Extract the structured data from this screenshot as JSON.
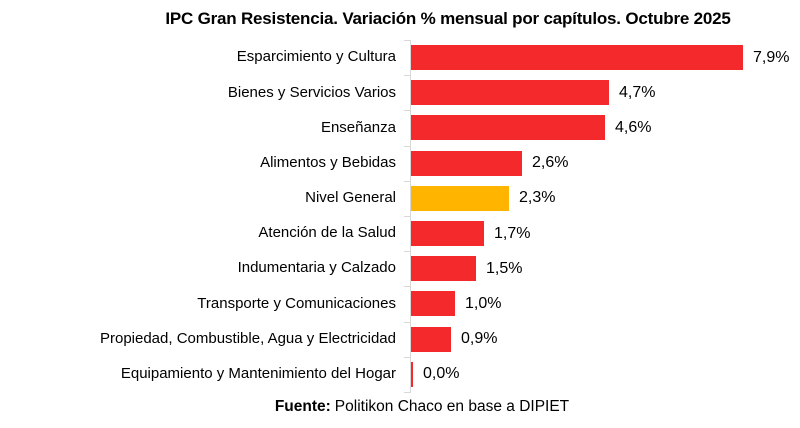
{
  "title": "IPC Gran Resistencia. Variación % mensual por capítulos. Octubre 2025",
  "footer": {
    "source_label": "Fuente:",
    "source_text": "Politikon Chaco en base a DIPIET"
  },
  "colors": {
    "bar_red": "#f4292c",
    "bar_highlight": "#ffb400",
    "axis_gray": "#d8d8d8",
    "text": "#000000",
    "background": "#ffffff"
  },
  "chart_data": {
    "type": "bar",
    "orientation": "horizontal",
    "title": "IPC Gran Resistencia. Variación % mensual por capítulos. Octubre 2025",
    "xlabel": "",
    "ylabel": "",
    "xlim": [
      0,
      8.4
    ],
    "grid": false,
    "legend": "none",
    "bar_color": "#f4292c",
    "highlight_color": "#ffb400",
    "highlight_category": "Nivel General",
    "categories": [
      "Esparcimiento y Cultura",
      "Bienes y Servicios Varios",
      "Enseñanza",
      "Alimentos y Bebidas",
      "Nivel General",
      "Atención de la Salud",
      "Indumentaria y Calzado",
      "Transporte y Comunicaciones",
      "Propiedad, Combustible, Agua y Electricidad",
      "Equipamiento y Mantenimiento del Hogar"
    ],
    "values": [
      7.9,
      4.7,
      4.6,
      2.6,
      2.3,
      1.7,
      1.5,
      1.0,
      0.9,
      0.0
    ],
    "value_labels": [
      "7,9%",
      "4,7%",
      "4,6%",
      "2,6%",
      "2,3%",
      "1,7%",
      "1,5%",
      "1,0%",
      "0,9%",
      "0,0%"
    ]
  }
}
